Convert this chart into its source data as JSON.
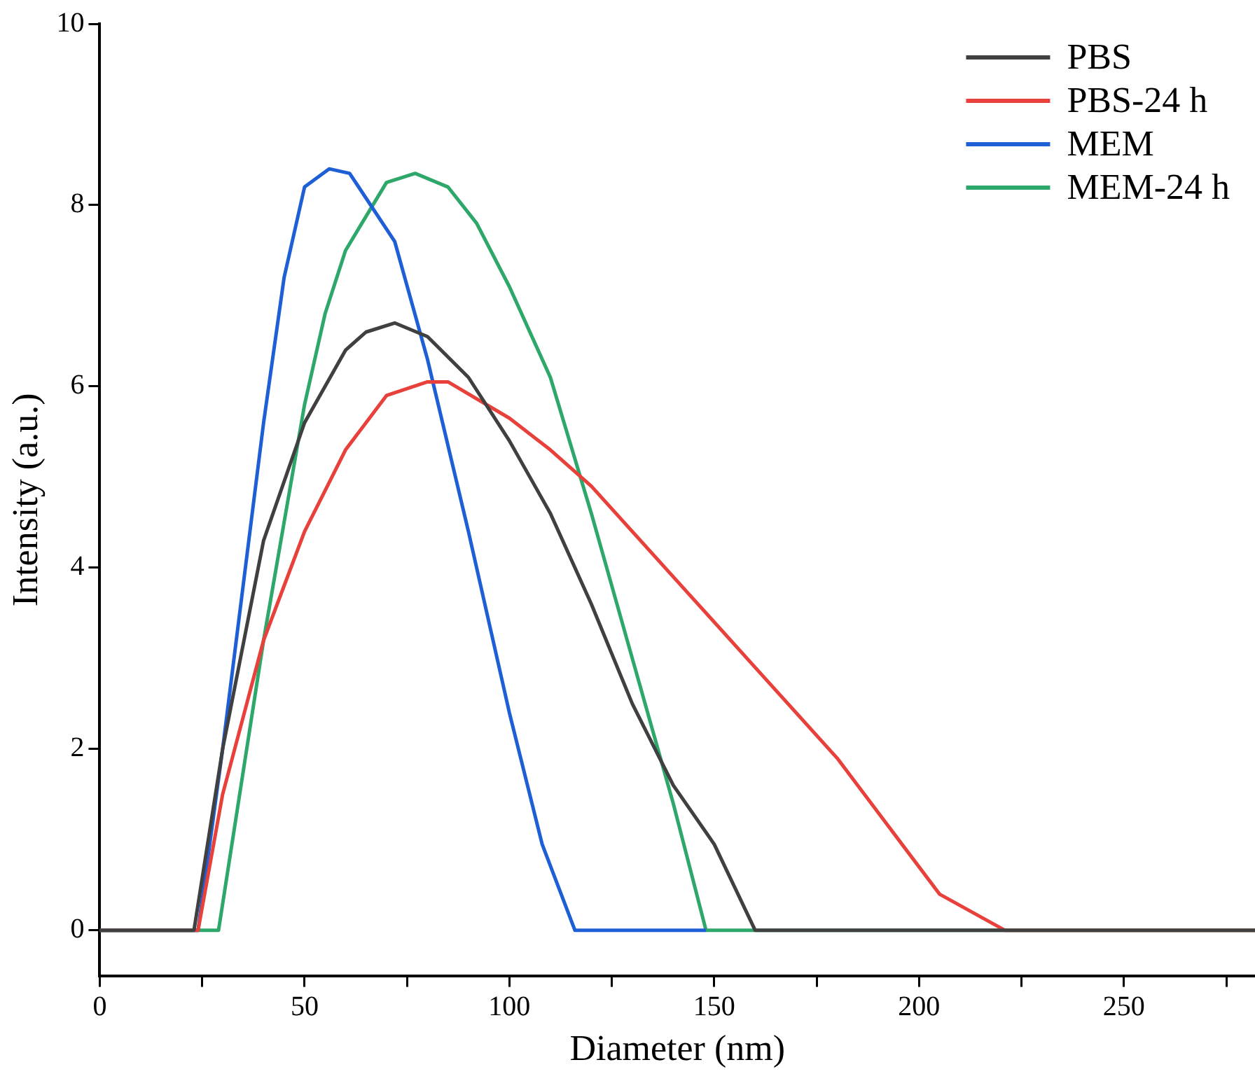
{
  "chart_data": {
    "type": "line",
    "xlabel": "Diameter (nm)",
    "ylabel": "Intensity (a.u.)",
    "xlim": [
      0,
      282
    ],
    "ylim": [
      -0.5,
      10
    ],
    "xticks": [
      0,
      {
        "value": 25,
        "label": null
      },
      50,
      {
        "value": 75,
        "label": null
      },
      100,
      {
        "value": 125,
        "label": null
      },
      150,
      {
        "value": 175,
        "label": null
      },
      200,
      {
        "value": 225,
        "label": null
      },
      250,
      {
        "value": 275,
        "label": null
      }
    ],
    "yticks": [
      0,
      2,
      4,
      6,
      8,
      10
    ],
    "grid": false,
    "legend": "top right",
    "marker": "none",
    "line_style": "solid",
    "series": [
      {
        "name": "PBS",
        "color": "#404040",
        "x": [
          0,
          23,
          30,
          40,
          50,
          60,
          65,
          72,
          80,
          90,
          100,
          110,
          120,
          130,
          140,
          150,
          160,
          282
        ],
        "values": [
          0,
          0,
          2.0,
          4.3,
          5.6,
          6.4,
          6.6,
          6.7,
          6.55,
          6.1,
          5.4,
          4.6,
          3.6,
          2.5,
          1.6,
          0.95,
          0,
          0
        ]
      },
      {
        "name": "PBS-24 h",
        "color": "#e8413c",
        "x": [
          0,
          24,
          30,
          40,
          50,
          60,
          70,
          80,
          85,
          100,
          110,
          120,
          140,
          160,
          180,
          205,
          221,
          282
        ],
        "values": [
          0,
          0,
          1.5,
          3.2,
          4.4,
          5.3,
          5.9,
          6.05,
          6.05,
          5.65,
          5.3,
          4.9,
          3.9,
          2.9,
          1.9,
          0.4,
          0,
          0
        ]
      },
      {
        "name": "MEM",
        "color": "#1f5fd6",
        "x": [
          0,
          24,
          30,
          40,
          45,
          50,
          56,
          61,
          72,
          80,
          90,
          100,
          108,
          116,
          148
        ],
        "values": [
          0,
          0,
          2.0,
          5.6,
          7.2,
          8.2,
          8.4,
          8.35,
          7.6,
          6.3,
          4.4,
          2.4,
          0.95,
          0,
          0
        ]
      },
      {
        "name": "MEM-24 h",
        "color": "#2ea86a",
        "x": [
          0,
          29,
          40,
          50,
          55,
          60,
          70,
          77,
          85,
          92,
          100,
          110,
          120,
          130,
          140,
          148,
          282
        ],
        "values": [
          0,
          0,
          3.2,
          5.8,
          6.8,
          7.5,
          8.25,
          8.35,
          8.2,
          7.8,
          7.1,
          6.1,
          4.6,
          3.0,
          1.4,
          0,
          0
        ]
      }
    ]
  }
}
